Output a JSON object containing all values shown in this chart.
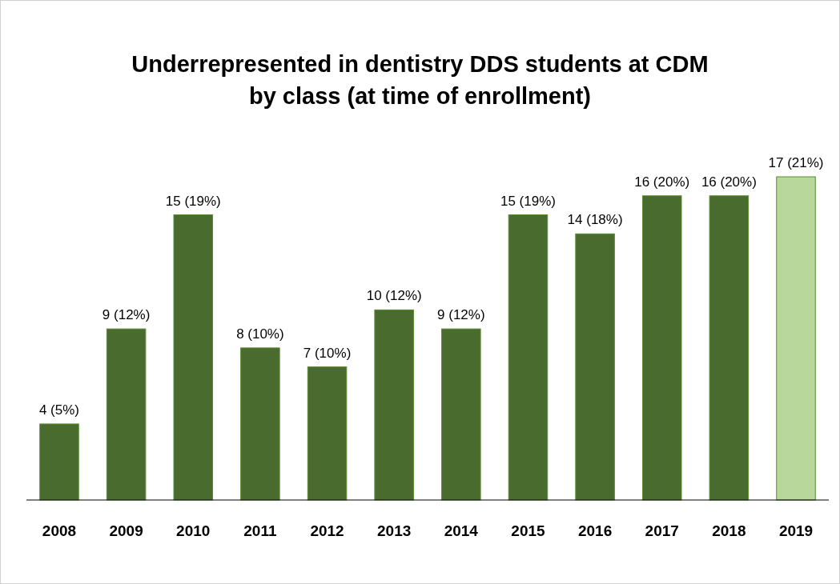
{
  "chart_data": {
    "type": "bar",
    "title": "Underrepresented in dentistry DDS students at CDM\nby class (at time of enrollment)",
    "categories": [
      "2008",
      "2009",
      "2010",
      "2011",
      "2012",
      "2013",
      "2014",
      "2015",
      "2016",
      "2017",
      "2018",
      "2019"
    ],
    "values": [
      4,
      9,
      15,
      8,
      7,
      10,
      9,
      15,
      14,
      16,
      16,
      17
    ],
    "value_labels": [
      "4 (5%)",
      "9 (12%)",
      "15 (19%)",
      "8 (10%)",
      "7 (10%)",
      "10 (12%)",
      "9 (12%)",
      "15 (19%)",
      "14 (18%)",
      "16 (20%)",
      "16 (20%)",
      "17 (21%)"
    ],
    "colors": [
      "#4a6b2e",
      "#4a6b2e",
      "#4a6b2e",
      "#4a6b2e",
      "#4a6b2e",
      "#4a6b2e",
      "#4a6b2e",
      "#4a6b2e",
      "#4a6b2e",
      "#4a6b2e",
      "#4a6b2e",
      "#b8d89b"
    ],
    "tick_labels": "x"
  }
}
